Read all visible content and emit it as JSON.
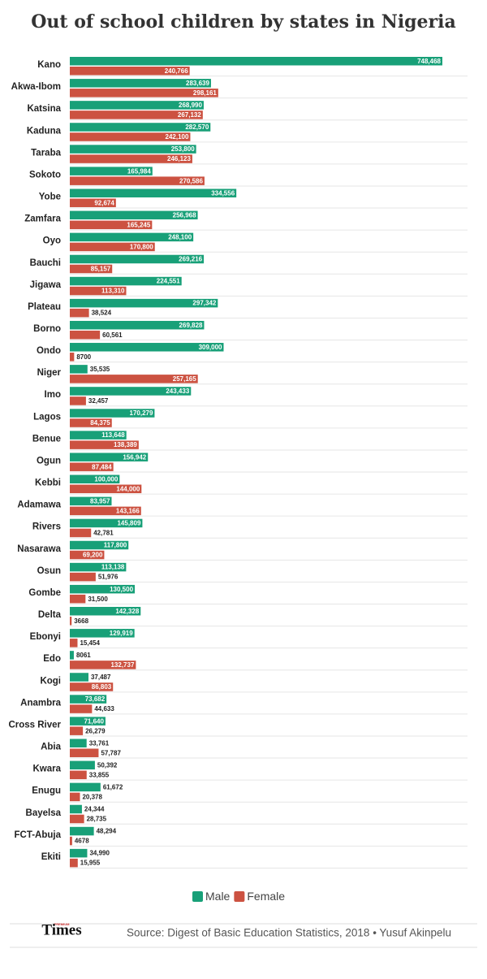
{
  "chart_data": {
    "type": "bar",
    "orientation": "horizontal",
    "title": "Out of school children by states in Nigeria",
    "categories": [
      "Kano",
      "Akwa-Ibom",
      "Katsina",
      "Kaduna",
      "Taraba",
      "Sokoto",
      "Yobe",
      "Zamfara",
      "Oyo",
      "Bauchi",
      "Jigawa",
      "Plateau",
      "Borno",
      "Ondo",
      "Niger",
      "Imo",
      "Lagos",
      "Benue",
      "Ogun",
      "Kebbi",
      "Adamawa",
      "Rivers",
      "Nasarawa",
      "Osun",
      "Gombe",
      "Delta",
      "Ebonyi",
      "Edo",
      "Kogi",
      "Anambra",
      "Cross River",
      "Abia",
      "Kwara",
      "Enugu",
      "Bayelsa",
      "FCT-Abuja",
      "Ekiti"
    ],
    "series": [
      {
        "name": "Male",
        "color": "#18a078",
        "values": [
          748468,
          283639,
          268990,
          282570,
          253800,
          165984,
          334556,
          256968,
          248100,
          269216,
          224551,
          297342,
          269828,
          309000,
          35535,
          243433,
          170279,
          113648,
          156942,
          100000,
          83957,
          145809,
          117800,
          113138,
          130500,
          142328,
          129919,
          8061,
          37487,
          73682,
          71640,
          33761,
          50392,
          61672,
          24344,
          48294,
          34990
        ],
        "value_labels": [
          "748,468",
          "283,639",
          "268,990",
          "282,570",
          "253,800",
          "165,984",
          "334,556",
          "256,968",
          "248,100",
          "269,216",
          "224,551",
          "297,342",
          "269,828",
          "309,000",
          "35,535",
          "243,433",
          "170,279",
          "113,648",
          "156,942",
          "100,000",
          "83,957",
          "145,809",
          "117,800",
          "113,138",
          "130,500",
          "142,328",
          "129,919",
          "8061",
          "37,487",
          "73,682",
          "71,640",
          "33,761",
          "50,392",
          "61,672",
          "24,344",
          "48,294",
          "34,990"
        ]
      },
      {
        "name": "Female",
        "color": "#cc5241",
        "values": [
          240766,
          298161,
          267132,
          242100,
          246123,
          270586,
          92674,
          165245,
          170800,
          85157,
          113310,
          38524,
          60561,
          8700,
          257165,
          32457,
          84375,
          138389,
          87484,
          144000,
          143166,
          42781,
          69200,
          51976,
          31500,
          3668,
          15454,
          132737,
          86803,
          44633,
          26279,
          57787,
          33855,
          20378,
          28735,
          4678,
          15955
        ],
        "value_labels": [
          "240,766",
          "298,161",
          "267,132",
          "242,100",
          "246,123",
          "270,586",
          "92,674",
          "165,245",
          "170,800",
          "85,157",
          "113,310",
          "38,524",
          "60,561",
          "8700",
          "257,165",
          "32,457",
          "84,375",
          "138,389",
          "87,484",
          "144,000",
          "143,166",
          "42,781",
          "69,200",
          "51,976",
          "31,500",
          "3668",
          "15,454",
          "132,737",
          "86,803",
          "44,633",
          "26,279",
          "57,787",
          "33,855",
          "20,378",
          "28,735",
          "4678",
          "15,955"
        ]
      }
    ],
    "source": "Source: Digest of Basic Education Statistics, 2018 • Yusuf Akinpelu",
    "logo": {
      "small": "PREMIUM",
      "main": "Times"
    }
  }
}
